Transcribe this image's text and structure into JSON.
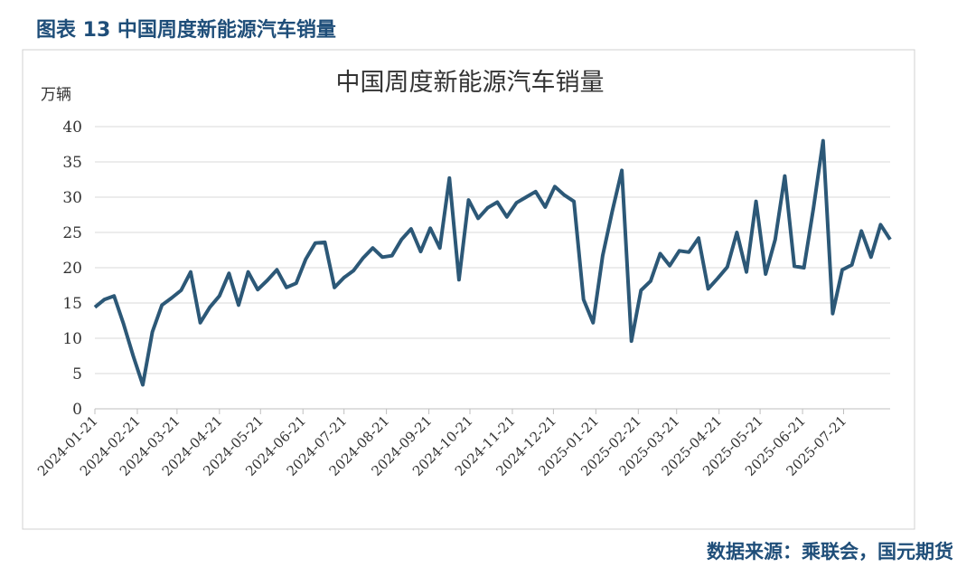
{
  "header": {
    "title": "图表 13 中国周度新能源汽车销量"
  },
  "chart_data": {
    "type": "line",
    "title": "中国周度新能源汽车销量",
    "y_label": "万辆",
    "color": "#2c5877",
    "x": [
      "2024-01-21",
      "2024-01-28",
      "2024-02-04",
      "2024-02-11",
      "2024-02-18",
      "2024-02-25",
      "2024-03-03",
      "2024-03-10",
      "2024-03-17",
      "2024-03-24",
      "2024-03-31",
      "2024-04-07",
      "2024-04-14",
      "2024-04-21",
      "2024-04-28",
      "2024-05-05",
      "2024-05-12",
      "2024-05-19",
      "2024-05-26",
      "2024-06-02",
      "2024-06-09",
      "2024-06-16",
      "2024-06-23",
      "2024-06-30",
      "2024-07-07",
      "2024-07-14",
      "2024-07-21",
      "2024-07-28",
      "2024-08-04",
      "2024-08-11",
      "2024-08-18",
      "2024-08-25",
      "2024-09-01",
      "2024-09-08",
      "2024-09-15",
      "2024-09-22",
      "2024-09-29",
      "2024-10-06",
      "2024-10-13",
      "2024-10-20",
      "2024-10-27",
      "2024-11-03",
      "2024-11-10",
      "2024-11-17",
      "2024-11-24",
      "2024-12-01",
      "2024-12-08",
      "2024-12-15",
      "2024-12-22",
      "2024-12-29",
      "2025-01-05",
      "2025-01-12",
      "2025-01-19",
      "2025-01-26",
      "2025-02-02",
      "2025-02-09",
      "2025-02-16",
      "2025-02-23",
      "2025-03-02",
      "2025-03-09",
      "2025-03-16",
      "2025-03-23",
      "2025-03-30",
      "2025-04-06",
      "2025-04-13",
      "2025-04-20",
      "2025-04-27",
      "2025-05-04",
      "2025-05-11",
      "2025-05-18",
      "2025-05-25",
      "2025-06-01",
      "2025-06-08",
      "2025-06-15",
      "2025-06-22",
      "2025-06-29",
      "2025-07-06",
      "2025-07-13",
      "2025-07-20",
      "2025-07-27",
      "2025-08-03",
      "2025-08-10",
      "2025-08-17",
      "2025-08-24"
    ],
    "values": [
      14.4,
      15.5,
      16.0,
      12.0,
      7.5,
      3.4,
      10.9,
      14.7,
      15.7,
      16.8,
      19.4,
      12.2,
      14.4,
      16.0,
      19.2,
      14.7,
      19.4,
      16.9,
      18.2,
      19.7,
      17.2,
      17.8,
      21.2,
      23.5,
      23.6,
      17.2,
      18.6,
      19.6,
      21.4,
      22.8,
      21.5,
      21.7,
      24.0,
      25.5,
      22.3,
      25.6,
      22.8,
      32.7,
      18.3,
      29.6,
      27.0,
      28.5,
      29.3,
      27.2,
      29.2,
      30.0,
      30.8,
      28.6,
      31.5,
      30.3,
      29.4,
      15.5,
      12.2,
      21.7,
      28.0,
      33.8,
      9.6,
      16.8,
      18.1,
      22.0,
      20.3,
      22.4,
      22.2,
      24.2,
      17.0,
      18.5,
      20.1,
      25.0,
      19.4,
      29.4,
      19.1,
      24.0,
      33.0,
      20.2,
      20.0,
      28.5,
      38.0,
      13.5,
      19.7,
      20.4,
      25.2,
      21.5,
      26.1,
      24.0
    ],
    "xlim": [
      "2024-01-21",
      "2025-08-24"
    ],
    "xticks": [
      "2024-01-21",
      "2024-02-21",
      "2024-03-21",
      "2024-04-21",
      "2024-05-21",
      "2024-06-21",
      "2024-07-21",
      "2024-08-21",
      "2024-09-21",
      "2024-10-21",
      "2024-11-21",
      "2024-12-21",
      "2025-01-21",
      "2025-02-21",
      "2025-03-21",
      "2025-04-21",
      "2025-05-21",
      "2025-06-21",
      "2025-07-21"
    ],
    "ylim": [
      0,
      40
    ],
    "yticks": [
      0,
      5,
      10,
      15,
      20,
      25,
      30,
      35,
      40
    ],
    "grid": true
  },
  "source": "数据来源：乘联会，国元期货"
}
